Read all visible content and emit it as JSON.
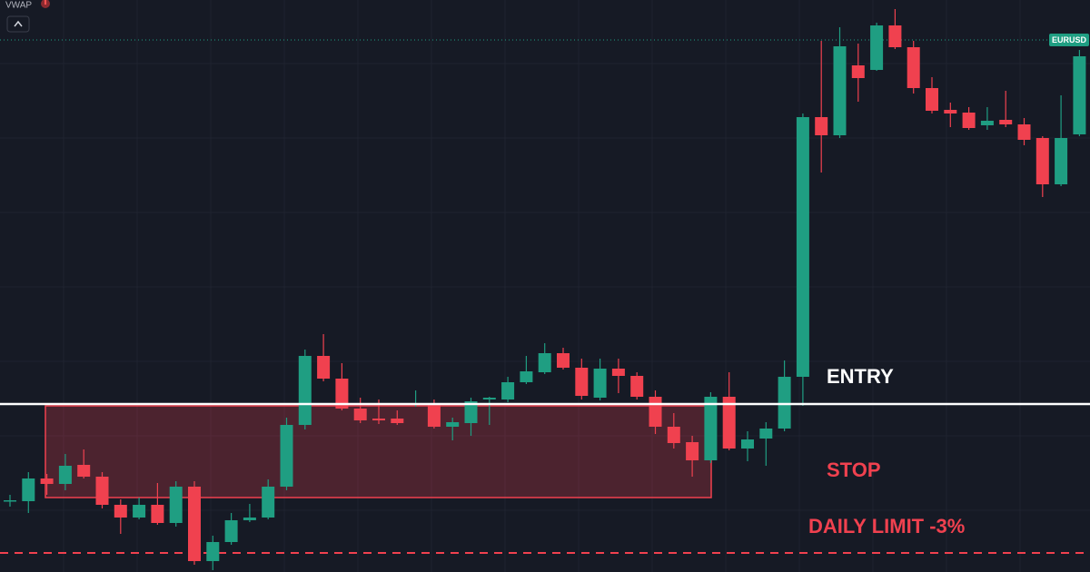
{
  "chart_data": {
    "type": "candlestick",
    "indicator": "VWAP",
    "up_color": "#1f9e82",
    "down_color": "#f0414f",
    "ylim": [
      0,
      630
    ],
    "open": [
      79,
      78,
      103,
      97,
      118,
      105,
      74,
      60,
      74,
      54,
      94,
      12,
      33,
      57,
      60,
      94,
      162,
      238,
      213,
      180,
      169,
      169,
      184,
      185,
      160,
      164,
      190,
      190,
      209,
      220,
      241,
      225,
      192,
      224,
      216,
      193,
      160,
      143,
      123,
      193,
      136,
      147,
      158,
      215,
      501,
      481,
      558,
      553,
      602,
      578,
      533,
      509,
      506,
      492,
      498,
      493,
      478,
      427,
      482
    ],
    "high": [
      85,
      110,
      108,
      130,
      135,
      110,
      80,
      82,
      98,
      100,
      100,
      40,
      65,
      75,
      102,
      170,
      245,
      262,
      230,
      192,
      190,
      178,
      200,
      190,
      170,
      192,
      193,
      215,
      238,
      252,
      247,
      235,
      235,
      235,
      220,
      200,
      175,
      150,
      198,
      220,
      155,
      165,
      233,
      505,
      585,
      600,
      582,
      605,
      620,
      585,
      545,
      517,
      512,
      512,
      530,
      500,
      480,
      525,
      575
    ],
    "low": [
      72,
      65,
      85,
      90,
      103,
      70,
      42,
      58,
      52,
      50,
      8,
      2,
      30,
      55,
      58,
      90,
      157,
      210,
      178,
      164,
      163,
      162,
      182,
      158,
      145,
      150,
      162,
      187,
      207,
      218,
      223,
      190,
      189,
      197,
      190,
      152,
      136,
      105,
      120,
      134,
      122,
      117,
      155,
      183,
      440,
      478,
      518,
      552,
      576,
      527,
      505,
      490,
      487,
      487,
      490,
      470,
      413,
      425,
      480
    ],
    "close": [
      79,
      103,
      97,
      117,
      105,
      74,
      60,
      74,
      54,
      94,
      12,
      33,
      57,
      60,
      94,
      162,
      238,
      213,
      180,
      167,
      167,
      164,
      186,
      160,
      165,
      188,
      192,
      209,
      221,
      241,
      225,
      194,
      224,
      216,
      193,
      160,
      142,
      123,
      193,
      136,
      146,
      158,
      215,
      501,
      481,
      579,
      544,
      602,
      578,
      533,
      508,
      505,
      489,
      497,
      493,
      476,
      427,
      478,
      568
    ],
    "price_line": {
      "label": "EURUSD",
      "value": 586,
      "color": "#1f9e82"
    },
    "entry": {
      "label": "ENTRY",
      "value": 185,
      "color": "#ffffff"
    },
    "stop": {
      "label": "STOP",
      "top": 183,
      "bottom": 82,
      "color": "#f0414f"
    },
    "daily_limit": {
      "label": "DAILY LIMIT -3%",
      "value": 21,
      "color": "#f0414f"
    }
  }
}
